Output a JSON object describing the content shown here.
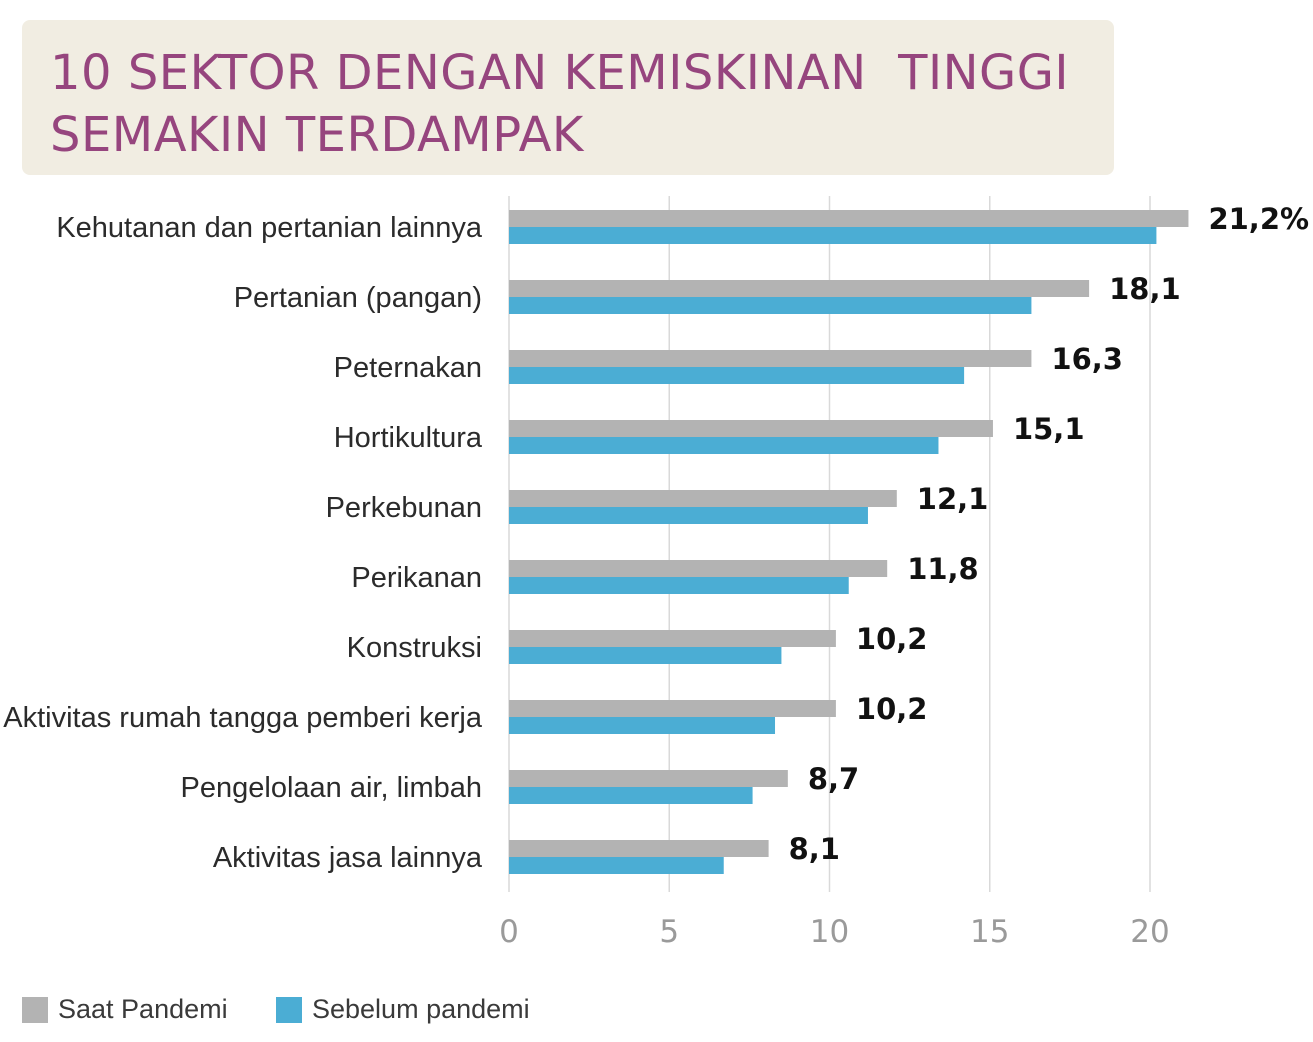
{
  "title": {
    "line1": "10 SEKTOR DENGAN KEMISKINAN  TINGGI",
    "line2": "SEMAKIN TERDAMPAK"
  },
  "colors": {
    "saat_pandemi": "#b3b3b3",
    "sebelum_pandemi": "#4badd4",
    "grid": "#d9d9d9",
    "title": "#96457e",
    "title_bg": "#f1ede2"
  },
  "legend": [
    {
      "label": "Saat Pandemi",
      "color": "#b3b3b3"
    },
    {
      "label": "Sebelum pandemi",
      "color": "#4badd4"
    }
  ],
  "chart_data": {
    "type": "bar",
    "orientation": "horizontal",
    "categories": [
      "Kehutanan dan pertanian lainnya",
      "Pertanian (pangan)",
      "Peternakan",
      "Hortikultura",
      "Perkebunan",
      "Perikanan",
      "Konstruksi",
      "Aktivitas rumah tangga pemberi kerja",
      "Pengelolaan air, limbah",
      "Aktivitas jasa lainnya"
    ],
    "series": [
      {
        "name": "Saat Pandemi",
        "values": [
          21.2,
          18.1,
          16.3,
          15.1,
          12.1,
          11.8,
          10.2,
          10.2,
          8.7,
          8.1
        ]
      },
      {
        "name": "Sebelum pandemi",
        "values": [
          20.2,
          16.3,
          14.2,
          13.4,
          11.2,
          10.6,
          8.5,
          8.3,
          7.6,
          6.7
        ]
      }
    ],
    "value_labels": [
      "21,2%",
      "18,1",
      "16,3",
      "15,1",
      "12,1",
      "11,8",
      "10,2",
      "10,2",
      "8,7",
      "8,1"
    ],
    "x_ticks": [
      0,
      5,
      10,
      15,
      20
    ],
    "x_tick_labels": [
      "0",
      "5",
      "10",
      "15",
      "20"
    ],
    "xlim": [
      0,
      22
    ],
    "grid": true,
    "legend_position": "bottom-left"
  }
}
